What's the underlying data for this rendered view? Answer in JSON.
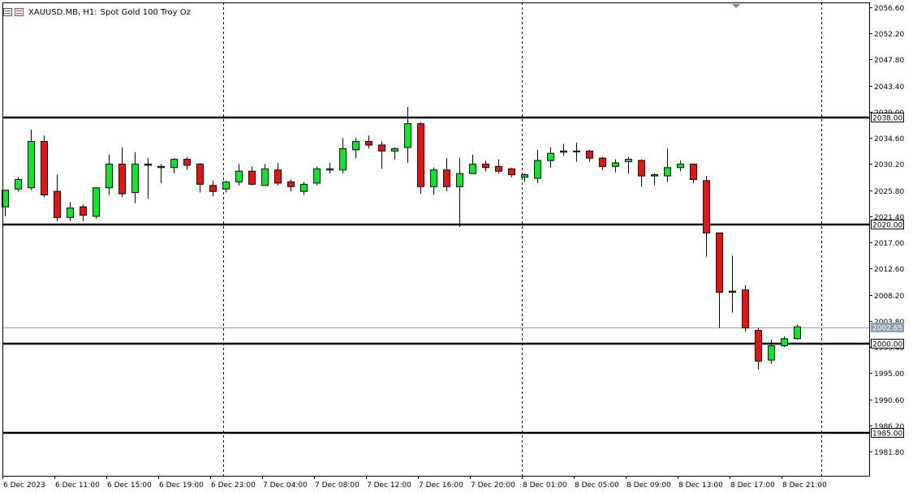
{
  "header": {
    "symbol": "XAUUSD.MB",
    "timeframe": "H1:",
    "description": "Spot Gold 100 Troy Oz",
    "icons": [
      "chart-window-icon",
      "trade-panel-icon"
    ]
  },
  "colors": {
    "bull": "#00ee22",
    "bear": "#ee1111",
    "outline": "#000000",
    "grid": "#000000",
    "background": "#ffffff",
    "hline": "#000000",
    "bid_line": "#8fa1b3"
  },
  "chart_data": {
    "type": "candlestick",
    "timeframe": "H1",
    "ylim": [
      1978.2,
      2058.4
    ],
    "y_ticks": [
      "2056.60",
      "2052.20",
      "2047.80",
      "2043.40",
      "2039.00",
      "2034.60",
      "2030.20",
      "2025.80",
      "2021.40",
      "2017.00",
      "2012.60",
      "2008.20",
      "2003.80",
      "1999.40",
      "1995.00",
      "1990.60",
      "1986.20",
      "1981.80"
    ],
    "x_labels": [
      "6 Dec 2023",
      "6 Dec 11:00",
      "6 Dec 15:00",
      "6 Dec 19:00",
      "6 Dec 23:00",
      "7 Dec 04:00",
      "7 Dec 08:00",
      "7 Dec 12:00",
      "7 Dec 16:00",
      "7 Dec 20:00",
      "8 Dec 01:00",
      "8 Dec 05:00",
      "8 Dec 09:00",
      "8 Dec 13:00",
      "8 Dec 17:00",
      "8 Dec 21:00"
    ],
    "period_separators": [
      "6 Dec 23:00",
      "8 Dec 00:00",
      "8 Dec 23:00"
    ],
    "grid": false,
    "horizontal_levels": [
      {
        "value": 2038.0,
        "label": "2038.00"
      },
      {
        "value": 2020.0,
        "label": "2020.00"
      },
      {
        "value": 2000.0,
        "label": "2000.00"
      },
      {
        "value": 1985.0,
        "label": "1985.00"
      }
    ],
    "bid_line": {
      "value": 2002.65,
      "label": "2002.65"
    },
    "candles": [
      {
        "o": 2023.0,
        "h": 2025.8,
        "l": 2021.4,
        "c": 2025.8
      },
      {
        "o": 2026.0,
        "h": 2028.0,
        "l": 2025.6,
        "c": 2027.6
      },
      {
        "o": 2026.2,
        "h": 2036.0,
        "l": 2025.8,
        "c": 2034.0
      },
      {
        "o": 2034.0,
        "h": 2035.0,
        "l": 2024.6,
        "c": 2025.0
      },
      {
        "o": 2025.6,
        "h": 2028.4,
        "l": 2020.6,
        "c": 2021.2
      },
      {
        "o": 2021.2,
        "h": 2023.8,
        "l": 2020.6,
        "c": 2022.8
      },
      {
        "o": 2023.0,
        "h": 2023.4,
        "l": 2020.6,
        "c": 2021.6
      },
      {
        "o": 2021.4,
        "h": 2026.2,
        "l": 2021.0,
        "c": 2026.2
      },
      {
        "o": 2026.2,
        "h": 2031.8,
        "l": 2025.0,
        "c": 2030.2
      },
      {
        "o": 2030.2,
        "h": 2033.0,
        "l": 2024.6,
        "c": 2025.2
      },
      {
        "o": 2025.4,
        "h": 2032.2,
        "l": 2023.6,
        "c": 2030.2
      },
      {
        "o": 2030.2,
        "h": 2031.2,
        "l": 2024.4,
        "c": 2030.0
      },
      {
        "o": 2029.6,
        "h": 2030.2,
        "l": 2027.0,
        "c": 2029.8
      },
      {
        "o": 2029.6,
        "h": 2031.2,
        "l": 2028.6,
        "c": 2031.0
      },
      {
        "o": 2031.0,
        "h": 2031.4,
        "l": 2029.2,
        "c": 2030.0
      },
      {
        "o": 2030.2,
        "h": 2030.4,
        "l": 2025.4,
        "c": 2026.8
      },
      {
        "o": 2026.6,
        "h": 2027.4,
        "l": 2024.8,
        "c": 2025.6
      },
      {
        "o": 2026.0,
        "h": 2027.4,
        "l": 2025.4,
        "c": 2027.2
      },
      {
        "o": 2027.2,
        "h": 2030.2,
        "l": 2026.6,
        "c": 2029.0
      },
      {
        "o": 2029.0,
        "h": 2029.8,
        "l": 2026.6,
        "c": 2026.8
      },
      {
        "o": 2026.6,
        "h": 2030.2,
        "l": 2026.6,
        "c": 2029.4
      },
      {
        "o": 2029.2,
        "h": 2030.4,
        "l": 2026.6,
        "c": 2027.0
      },
      {
        "o": 2027.2,
        "h": 2027.6,
        "l": 2025.6,
        "c": 2026.4
      },
      {
        "o": 2025.6,
        "h": 2027.2,
        "l": 2025.0,
        "c": 2026.8
      },
      {
        "o": 2027.0,
        "h": 2029.8,
        "l": 2026.6,
        "c": 2029.4
      },
      {
        "o": 2029.2,
        "h": 2030.4,
        "l": 2028.6,
        "c": 2029.4
      },
      {
        "o": 2029.2,
        "h": 2034.6,
        "l": 2028.6,
        "c": 2032.8
      },
      {
        "o": 2032.6,
        "h": 2034.6,
        "l": 2031.2,
        "c": 2034.0
      },
      {
        "o": 2034.0,
        "h": 2035.0,
        "l": 2032.8,
        "c": 2033.4
      },
      {
        "o": 2033.4,
        "h": 2034.0,
        "l": 2029.4,
        "c": 2032.4
      },
      {
        "o": 2032.4,
        "h": 2033.0,
        "l": 2031.0,
        "c": 2032.8
      },
      {
        "o": 2033.0,
        "h": 2039.8,
        "l": 2030.4,
        "c": 2037.0
      },
      {
        "o": 2037.0,
        "h": 2037.2,
        "l": 2025.2,
        "c": 2026.4
      },
      {
        "o": 2026.4,
        "h": 2029.6,
        "l": 2025.0,
        "c": 2029.2
      },
      {
        "o": 2029.2,
        "h": 2031.2,
        "l": 2025.6,
        "c": 2026.4
      },
      {
        "o": 2026.4,
        "h": 2031.2,
        "l": 2019.6,
        "c": 2028.6
      },
      {
        "o": 2028.6,
        "h": 2031.8,
        "l": 2028.6,
        "c": 2030.2
      },
      {
        "o": 2030.2,
        "h": 2030.8,
        "l": 2029.0,
        "c": 2029.6
      },
      {
        "o": 2029.8,
        "h": 2031.0,
        "l": 2028.6,
        "c": 2029.0
      },
      {
        "o": 2029.4,
        "h": 2029.6,
        "l": 2028.0,
        "c": 2028.4
      },
      {
        "o": 2028.0,
        "h": 2028.6,
        "l": 2027.2,
        "c": 2028.4
      },
      {
        "o": 2027.8,
        "h": 2032.6,
        "l": 2027.0,
        "c": 2030.8
      },
      {
        "o": 2030.8,
        "h": 2033.0,
        "l": 2029.6,
        "c": 2032.0
      },
      {
        "o": 2032.2,
        "h": 2033.6,
        "l": 2031.6,
        "c": 2032.4
      },
      {
        "o": 2032.4,
        "h": 2033.8,
        "l": 2030.6,
        "c": 2032.4
      },
      {
        "o": 2032.4,
        "h": 2032.6,
        "l": 2030.6,
        "c": 2031.2
      },
      {
        "o": 2031.2,
        "h": 2031.4,
        "l": 2029.2,
        "c": 2029.8
      },
      {
        "o": 2029.8,
        "h": 2031.0,
        "l": 2028.8,
        "c": 2030.4
      },
      {
        "o": 2030.6,
        "h": 2031.4,
        "l": 2028.6,
        "c": 2031.0
      },
      {
        "o": 2030.8,
        "h": 2031.0,
        "l": 2026.4,
        "c": 2028.2
      },
      {
        "o": 2028.2,
        "h": 2028.6,
        "l": 2026.6,
        "c": 2028.4
      },
      {
        "o": 2028.2,
        "h": 2032.8,
        "l": 2027.2,
        "c": 2029.6
      },
      {
        "o": 2029.6,
        "h": 2030.8,
        "l": 2029.0,
        "c": 2030.2
      },
      {
        "o": 2030.2,
        "h": 2030.2,
        "l": 2027.0,
        "c": 2027.6
      },
      {
        "o": 2027.4,
        "h": 2028.2,
        "l": 2014.6,
        "c": 2018.6
      },
      {
        "o": 2018.6,
        "h": 2018.6,
        "l": 2002.6,
        "c": 2008.6
      },
      {
        "o": 2008.6,
        "h": 2014.8,
        "l": 2005.2,
        "c": 2008.8
      },
      {
        "o": 2009.0,
        "h": 2009.8,
        "l": 2002.0,
        "c": 2002.6
      },
      {
        "o": 2002.2,
        "h": 2002.6,
        "l": 1995.6,
        "c": 1997.0
      },
      {
        "o": 1997.2,
        "h": 2000.6,
        "l": 1996.6,
        "c": 1999.6
      },
      {
        "o": 1999.6,
        "h": 2001.2,
        "l": 1999.4,
        "c": 2000.8
      },
      {
        "o": 2000.8,
        "h": 2003.2,
        "l": 2000.6,
        "c": 2002.8
      }
    ]
  }
}
